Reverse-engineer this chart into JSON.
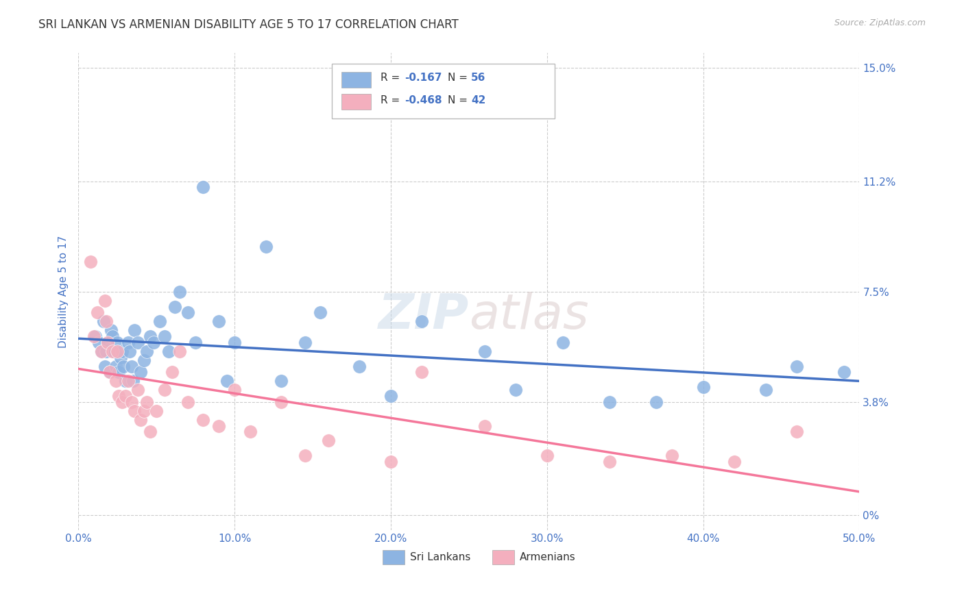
{
  "title": "SRI LANKAN VS ARMENIAN DISABILITY AGE 5 TO 17 CORRELATION CHART",
  "source": "Source: ZipAtlas.com",
  "ylabel": "Disability Age 5 to 17",
  "xlabel": "",
  "xlim": [
    0.0,
    0.5
  ],
  "ylim": [
    -0.005,
    0.155
  ],
  "xticks": [
    0.0,
    0.1,
    0.2,
    0.3,
    0.4,
    0.5
  ],
  "xticklabels": [
    "0.0%",
    "10.0%",
    "20.0%",
    "30.0%",
    "40.0%",
    "50.0%"
  ],
  "yticks_right": [
    0.0,
    0.038,
    0.075,
    0.112,
    0.15
  ],
  "ytick_labels_right": [
    "0%",
    "3.8%",
    "7.5%",
    "11.2%",
    "15.0%"
  ],
  "background_color": "#ffffff",
  "grid_color": "#cccccc",
  "title_color": "#333333",
  "axis_label_color": "#4472c4",
  "sri_lankan_color": "#8DB4E2",
  "armenian_color": "#F4AFBE",
  "sri_lankan_line_color": "#4472c4",
  "armenian_line_color": "#F4779A",
  "sri_lankan_R": -0.167,
  "sri_lankan_N": 56,
  "armenian_R": -0.468,
  "armenian_N": 42,
  "watermark_zip": "ZIP",
  "watermark_atlas": "atlas",
  "sri_lankan_x": [
    0.011,
    0.013,
    0.015,
    0.016,
    0.017,
    0.018,
    0.019,
    0.02,
    0.021,
    0.022,
    0.023,
    0.024,
    0.025,
    0.026,
    0.027,
    0.028,
    0.029,
    0.03,
    0.032,
    0.033,
    0.034,
    0.035,
    0.036,
    0.038,
    0.04,
    0.042,
    0.044,
    0.046,
    0.048,
    0.052,
    0.055,
    0.058,
    0.062,
    0.065,
    0.07,
    0.075,
    0.08,
    0.09,
    0.095,
    0.1,
    0.12,
    0.13,
    0.145,
    0.155,
    0.18,
    0.2,
    0.22,
    0.26,
    0.28,
    0.31,
    0.34,
    0.37,
    0.4,
    0.44,
    0.46,
    0.49
  ],
  "sri_lankan_y": [
    0.06,
    0.058,
    0.055,
    0.065,
    0.05,
    0.055,
    0.058,
    0.048,
    0.062,
    0.06,
    0.055,
    0.05,
    0.058,
    0.048,
    0.053,
    0.055,
    0.05,
    0.045,
    0.058,
    0.055,
    0.05,
    0.045,
    0.062,
    0.058,
    0.048,
    0.052,
    0.055,
    0.06,
    0.058,
    0.065,
    0.06,
    0.055,
    0.07,
    0.075,
    0.068,
    0.058,
    0.11,
    0.065,
    0.045,
    0.058,
    0.09,
    0.045,
    0.058,
    0.068,
    0.05,
    0.04,
    0.065,
    0.055,
    0.042,
    0.058,
    0.038,
    0.038,
    0.043,
    0.042,
    0.05,
    0.048
  ],
  "armenian_x": [
    0.008,
    0.01,
    0.012,
    0.015,
    0.017,
    0.018,
    0.019,
    0.02,
    0.022,
    0.024,
    0.025,
    0.026,
    0.028,
    0.03,
    0.032,
    0.034,
    0.036,
    0.038,
    0.04,
    0.042,
    0.044,
    0.046,
    0.05,
    0.055,
    0.06,
    0.065,
    0.07,
    0.08,
    0.09,
    0.1,
    0.11,
    0.13,
    0.145,
    0.16,
    0.2,
    0.22,
    0.26,
    0.3,
    0.34,
    0.38,
    0.42,
    0.46
  ],
  "armenian_y": [
    0.085,
    0.06,
    0.068,
    0.055,
    0.072,
    0.065,
    0.058,
    0.048,
    0.055,
    0.045,
    0.055,
    0.04,
    0.038,
    0.04,
    0.045,
    0.038,
    0.035,
    0.042,
    0.032,
    0.035,
    0.038,
    0.028,
    0.035,
    0.042,
    0.048,
    0.055,
    0.038,
    0.032,
    0.03,
    0.042,
    0.028,
    0.038,
    0.02,
    0.025,
    0.018,
    0.048,
    0.03,
    0.02,
    0.018,
    0.02,
    0.018,
    0.028
  ]
}
